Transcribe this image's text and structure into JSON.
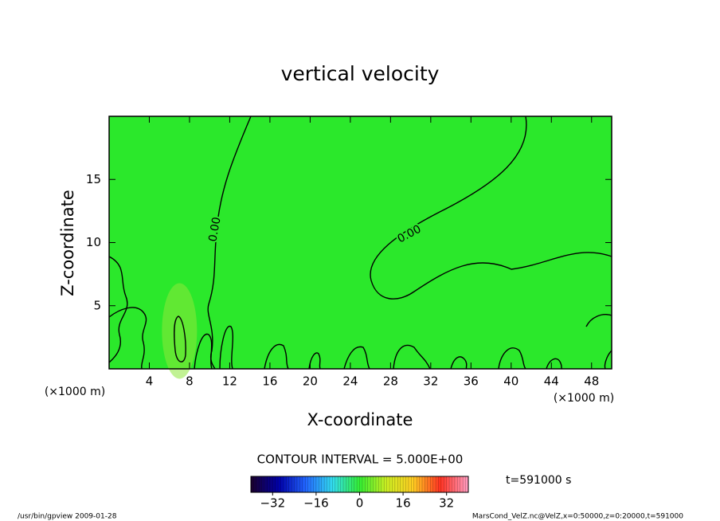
{
  "chart_data": {
    "type": "contour",
    "title": "vertical velocity",
    "x_label": "X-coordinate",
    "y_label": "Z-coordinate",
    "x_unit": "(×1000 m)",
    "y_unit": "(×1000 m)",
    "xlim": [
      0,
      50
    ],
    "ylim": [
      0,
      20
    ],
    "xticks": [
      4,
      8,
      12,
      16,
      20,
      24,
      28,
      32,
      36,
      40,
      44,
      48
    ],
    "yticks": [
      5,
      10,
      15
    ],
    "field_color": "#2be82b",
    "contour_levels": [
      {
        "value": 0,
        "label": "0.00"
      }
    ],
    "contour_interval": "CONTOUR INTERVAL = 5.000E+00",
    "clim": [
      -40,
      40
    ],
    "cticks": [
      -32,
      -16,
      0,
      16,
      32
    ],
    "colormap": [
      "#1a0033",
      "#0000aa",
      "#2266ff",
      "#33ddee",
      "#33ee33",
      "#ccee22",
      "#ffcc22",
      "#ff3322",
      "#ff99bb"
    ],
    "time_label": "t=591000 s",
    "footer_left": "/usr/bin/gpview  2009-01-28",
    "footer_right": "MarsCond_VelZ.nc@VelZ,x=0:50000,z=0:20000,t=591000"
  }
}
